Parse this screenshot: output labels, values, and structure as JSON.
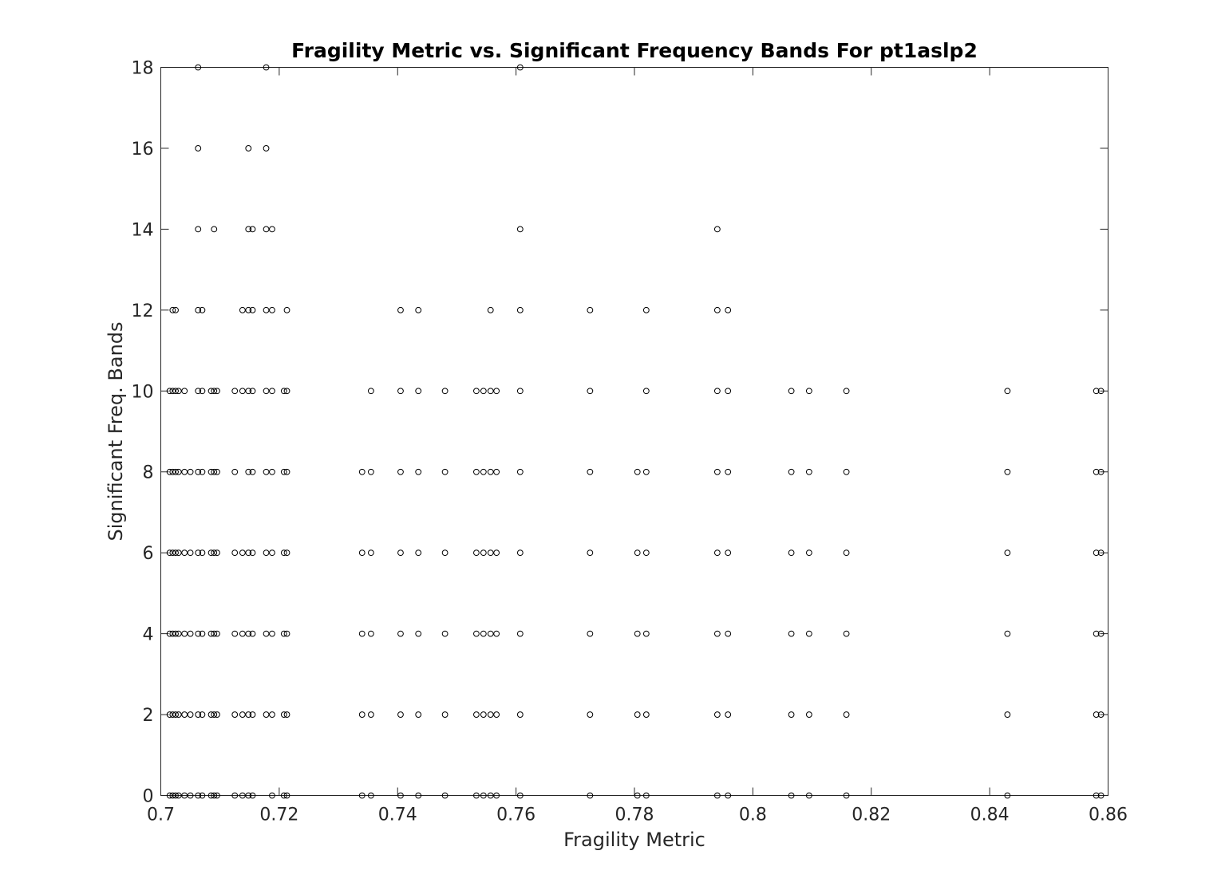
{
  "chart_data": {
    "type": "scatter",
    "title": "Fragility Metric vs. Significant Frequency Bands For pt1aslp2",
    "xlabel": "Fragility Metric",
    "ylabel": "Significant Freq. Bands",
    "xlim": [
      0.7,
      0.86
    ],
    "ylim": [
      0,
      18
    ],
    "xticks": [
      0.7,
      0.72,
      0.74,
      0.76,
      0.78,
      0.8,
      0.82,
      0.84,
      0.86
    ],
    "xtick_labels": [
      "0.7",
      "0.72",
      "0.74",
      "0.76",
      "0.78",
      "0.8",
      "0.82",
      "0.84",
      "0.86"
    ],
    "yticks": [
      0,
      2,
      4,
      6,
      8,
      10,
      12,
      14,
      16,
      18
    ],
    "ytick_labels": [
      "0",
      "2",
      "4",
      "6",
      "8",
      "10",
      "12",
      "14",
      "16",
      "18"
    ],
    "grid": false,
    "legend": "none",
    "marker": "circle-open",
    "marker_color": "#000000",
    "series": [
      {
        "values": [
          {
            "x": 0.7015,
            "y": [
              0,
              2,
              4,
              6,
              8,
              10
            ]
          },
          {
            "x": 0.702,
            "y": [
              0,
              2,
              4,
              6,
              8,
              10,
              12
            ]
          },
          {
            "x": 0.7025,
            "y": [
              0,
              2,
              4,
              6,
              8,
              10,
              12
            ]
          },
          {
            "x": 0.703,
            "y": [
              0,
              2,
              4,
              6,
              8,
              10
            ]
          },
          {
            "x": 0.704,
            "y": [
              0,
              2,
              4,
              6,
              8,
              10
            ]
          },
          {
            "x": 0.705,
            "y": [
              0,
              2,
              4,
              6,
              8
            ]
          },
          {
            "x": 0.7063,
            "y": [
              0,
              2,
              4,
              6,
              8,
              10,
              12,
              14,
              16,
              18
            ]
          },
          {
            "x": 0.707,
            "y": [
              0,
              2,
              4,
              6,
              8,
              10,
              12
            ]
          },
          {
            "x": 0.7085,
            "y": [
              0,
              2,
              4,
              6,
              8,
              10
            ]
          },
          {
            "x": 0.709,
            "y": [
              0,
              2,
              4,
              6,
              8,
              10,
              14
            ]
          },
          {
            "x": 0.7095,
            "y": [
              0,
              2,
              4,
              6,
              8,
              10
            ]
          },
          {
            "x": 0.7125,
            "y": [
              0,
              2,
              4,
              6,
              8,
              10
            ]
          },
          {
            "x": 0.7138,
            "y": [
              0,
              2,
              4,
              6,
              10,
              12
            ]
          },
          {
            "x": 0.7148,
            "y": [
              0,
              2,
              4,
              6,
              8,
              10,
              12,
              14,
              16
            ]
          },
          {
            "x": 0.7155,
            "y": [
              0,
              2,
              4,
              6,
              8,
              10,
              12,
              14
            ]
          },
          {
            "x": 0.7178,
            "y": [
              2,
              4,
              6,
              8,
              10,
              12,
              14,
              16,
              18
            ]
          },
          {
            "x": 0.7188,
            "y": [
              0,
              2,
              4,
              6,
              8,
              10,
              12,
              14
            ]
          },
          {
            "x": 0.7208,
            "y": [
              0,
              2,
              4,
              6,
              8,
              10
            ]
          },
          {
            "x": 0.7213,
            "y": [
              0,
              2,
              4,
              6,
              8,
              10,
              12
            ]
          },
          {
            "x": 0.734,
            "y": [
              0,
              2,
              4,
              6,
              8
            ]
          },
          {
            "x": 0.7355,
            "y": [
              0,
              2,
              4,
              6,
              8,
              10
            ]
          },
          {
            "x": 0.7405,
            "y": [
              0,
              2,
              4,
              6,
              8,
              10,
              12
            ]
          },
          {
            "x": 0.7435,
            "y": [
              0,
              2,
              4,
              6,
              8,
              10,
              12
            ]
          },
          {
            "x": 0.748,
            "y": [
              0,
              2,
              4,
              6,
              8,
              10
            ]
          },
          {
            "x": 0.7533,
            "y": [
              0,
              2,
              4,
              6,
              8,
              10
            ]
          },
          {
            "x": 0.7545,
            "y": [
              0,
              2,
              4,
              6,
              8,
              10
            ]
          },
          {
            "x": 0.7557,
            "y": [
              0,
              2,
              4,
              6,
              8,
              10,
              12
            ]
          },
          {
            "x": 0.7567,
            "y": [
              0,
              2,
              4,
              6,
              8,
              10
            ]
          },
          {
            "x": 0.7607,
            "y": [
              0,
              2,
              4,
              6,
              8,
              10,
              12,
              14,
              18
            ]
          },
          {
            "x": 0.7725,
            "y": [
              0,
              2,
              4,
              6,
              8,
              10,
              12
            ]
          },
          {
            "x": 0.7805,
            "y": [
              0,
              2,
              4,
              6,
              8
            ]
          },
          {
            "x": 0.782,
            "y": [
              0,
              2,
              4,
              6,
              8,
              10,
              12
            ]
          },
          {
            "x": 0.794,
            "y": [
              0,
              2,
              4,
              6,
              8,
              10,
              12,
              14
            ]
          },
          {
            "x": 0.7958,
            "y": [
              0,
              2,
              4,
              6,
              8,
              10,
              12
            ]
          },
          {
            "x": 0.8065,
            "y": [
              0,
              2,
              4,
              6,
              8,
              10
            ]
          },
          {
            "x": 0.8095,
            "y": [
              0,
              2,
              4,
              6,
              8,
              10
            ]
          },
          {
            "x": 0.8158,
            "y": [
              0,
              2,
              4,
              6,
              8,
              10
            ]
          },
          {
            "x": 0.843,
            "y": [
              0,
              2,
              4,
              6,
              8,
              10
            ]
          },
          {
            "x": 0.858,
            "y": [
              0,
              2,
              4,
              6,
              8,
              10
            ]
          },
          {
            "x": 0.8588,
            "y": [
              0,
              2,
              4,
              6,
              8,
              10
            ]
          }
        ]
      }
    ]
  }
}
